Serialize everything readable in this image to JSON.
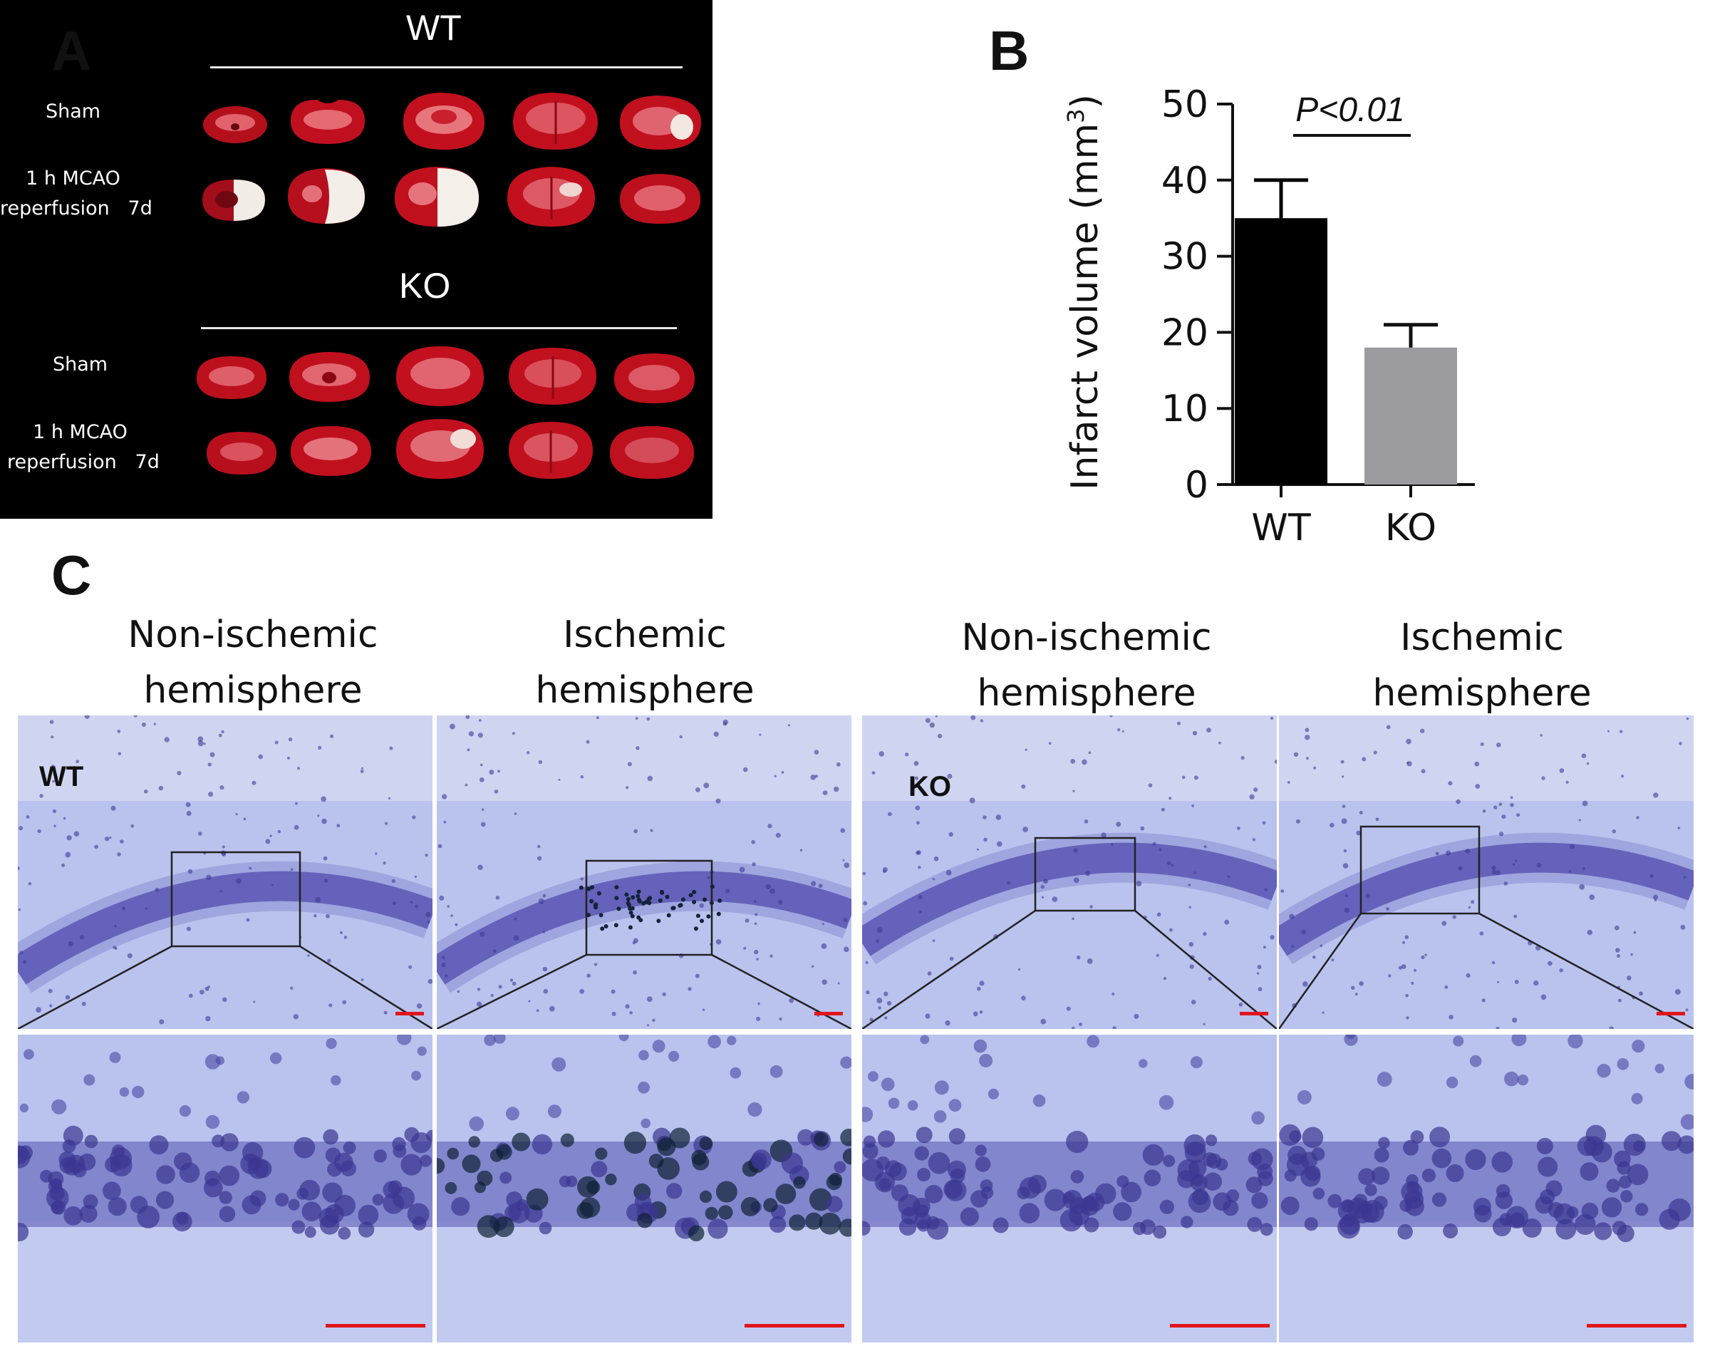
{
  "panel_labels": {
    "a": "A",
    "b": "B",
    "c": "C"
  },
  "panel_a": {
    "groups": [
      {
        "title": "WT",
        "rows": [
          {
            "label_lines": [
              "Sham"
            ]
          },
          {
            "label_lines": [
              "1 h MCAO",
              "reperfusion   7d"
            ]
          }
        ]
      },
      {
        "title": "KO",
        "rows": [
          {
            "label_lines": [
              "Sham"
            ]
          },
          {
            "label_lines": [
              "1 h MCAO",
              "reperfusion   7d"
            ]
          }
        ]
      }
    ]
  },
  "chart_data": {
    "type": "bar",
    "categories": [
      "WT",
      "KO"
    ],
    "values": [
      35,
      18
    ],
    "errors": [
      5,
      3
    ],
    "bar_colors": [
      "#000000",
      "#9c9c9e"
    ],
    "ylabel": "Infarct volume (mm",
    "ylabel_superscript": "3",
    "ylabel_suffix": ")",
    "ylim": [
      0,
      50
    ],
    "yticks": [
      "0",
      "10",
      "20",
      "30",
      "40",
      "50"
    ],
    "annotation": "P<0.01"
  },
  "panel_c": {
    "columns": [
      {
        "line1": "Non-ischemic",
        "line2": "hemisphere"
      },
      {
        "line1": "Ischemic",
        "line2": "hemisphere"
      },
      {
        "line1": "Non-ischemic",
        "line2": "hemisphere"
      },
      {
        "line1": "Ischemic",
        "line2": "hemisphere"
      }
    ],
    "image_tags": [
      "WT",
      "KO"
    ],
    "scale_bar_color": "#e0161c",
    "stain_color": "#b9c3ee"
  }
}
